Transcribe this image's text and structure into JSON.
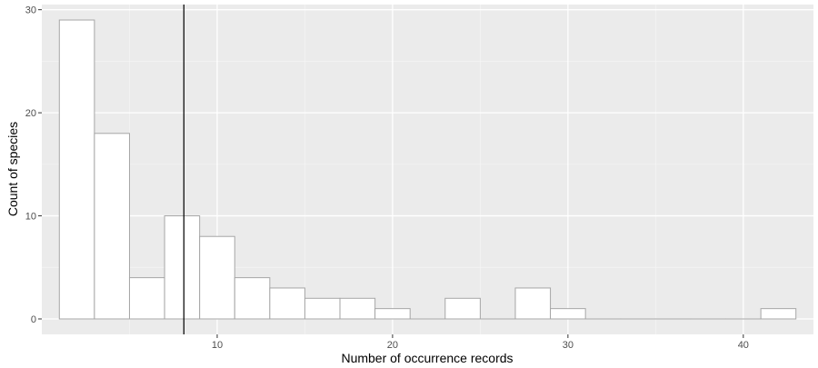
{
  "chart_data": {
    "type": "bar",
    "subtype": "histogram",
    "title": "",
    "xlabel": "Number of occurrence records",
    "ylabel": "Count of species",
    "xlim": [
      0,
      44
    ],
    "ylim": [
      -1.5,
      30.5
    ],
    "x_ticks": [
      10,
      20,
      30,
      40
    ],
    "x_tick_labels": [
      "10",
      "20",
      "30",
      "40"
    ],
    "y_ticks": [
      0,
      10,
      20,
      30
    ],
    "y_tick_labels": [
      "0",
      "10",
      "20",
      "30"
    ],
    "bin_width": 2,
    "bins": [
      {
        "start": 1,
        "end": 3,
        "count": 29
      },
      {
        "start": 3,
        "end": 5,
        "count": 18
      },
      {
        "start": 5,
        "end": 7,
        "count": 4
      },
      {
        "start": 7,
        "end": 9,
        "count": 10
      },
      {
        "start": 9,
        "end": 11,
        "count": 8
      },
      {
        "start": 11,
        "end": 13,
        "count": 4
      },
      {
        "start": 13,
        "end": 15,
        "count": 3
      },
      {
        "start": 15,
        "end": 17,
        "count": 2
      },
      {
        "start": 17,
        "end": 19,
        "count": 2
      },
      {
        "start": 19,
        "end": 21,
        "count": 1
      },
      {
        "start": 21,
        "end": 23,
        "count": 0
      },
      {
        "start": 23,
        "end": 25,
        "count": 2
      },
      {
        "start": 25,
        "end": 27,
        "count": 0
      },
      {
        "start": 27,
        "end": 29,
        "count": 3
      },
      {
        "start": 29,
        "end": 31,
        "count": 1
      },
      {
        "start": 31,
        "end": 33,
        "count": 0
      },
      {
        "start": 33,
        "end": 35,
        "count": 0
      },
      {
        "start": 35,
        "end": 37,
        "count": 0
      },
      {
        "start": 37,
        "end": 39,
        "count": 0
      },
      {
        "start": 39,
        "end": 41,
        "count": 0
      },
      {
        "start": 41,
        "end": 43,
        "count": 1
      }
    ],
    "reference_line_x": 8.1,
    "grid": true,
    "legend": "none",
    "colors": {
      "panel_background": "#ebebeb",
      "grid_major": "#ffffff",
      "grid_minor": "#f5f5f5",
      "bar_fill": "#ffffff",
      "bar_outline": "#a6a6a6",
      "reference_line": "#000000"
    }
  }
}
